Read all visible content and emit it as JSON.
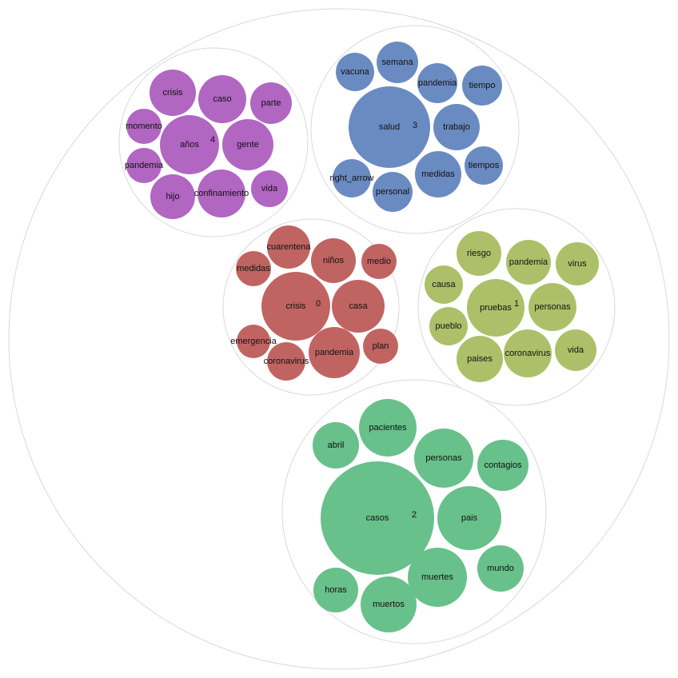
{
  "chart_data": {
    "type": "packed-bubble",
    "title": "",
    "clusters": [
      {
        "id": "0",
        "color": "#c06462",
        "words": [
          "crisis",
          "casa",
          "pandemia",
          "cuarentena",
          "niños",
          "medidas",
          "medio",
          "emergencia",
          "coronavirus",
          "plan"
        ]
      },
      {
        "id": "1",
        "color": "#adc069",
        "words": [
          "pruebas",
          "personas",
          "coronavirus",
          "riesgo",
          "paises",
          "virus",
          "vida",
          "pueblo",
          "causa",
          "pandemia"
        ]
      },
      {
        "id": "2",
        "color": "#68c08a",
        "words": [
          "casos",
          "pais",
          "personas",
          "muertes",
          "muertos",
          "pacientes",
          "contagios",
          "mundo",
          "abril",
          "horas"
        ]
      },
      {
        "id": "3",
        "color": "#6a8bc1",
        "words": [
          "salud",
          "trabajo",
          "medidas",
          "pandemia",
          "personal",
          "semana",
          "tiempo",
          "tiempos",
          "vacuna",
          "right_arrow"
        ]
      },
      {
        "id": "4",
        "color": "#b166c2",
        "words": [
          "años",
          "gente",
          "confinamiento",
          "caso",
          "crisis",
          "hijo",
          "parte",
          "vida",
          "momento",
          "pandemia"
        ]
      }
    ]
  }
}
